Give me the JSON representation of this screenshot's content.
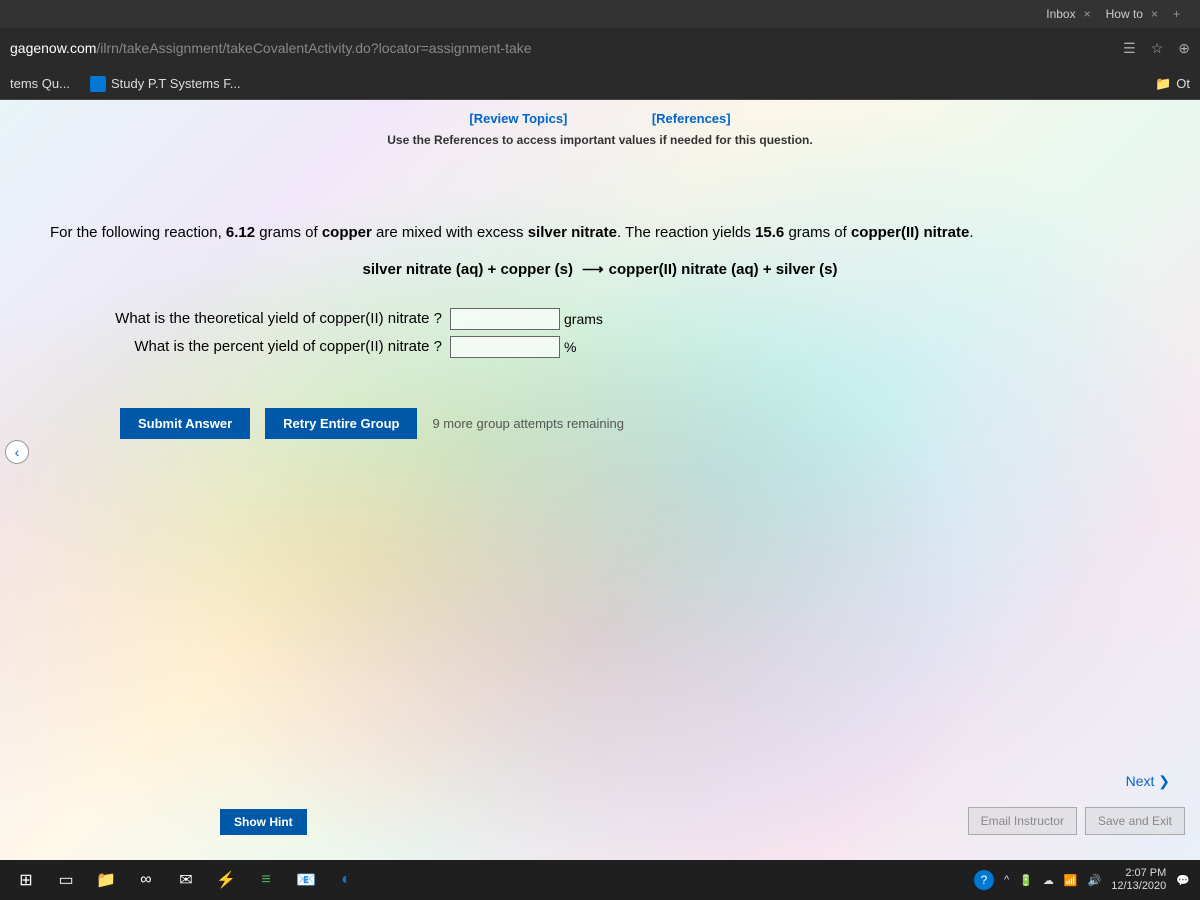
{
  "browser": {
    "tab_inbox": "Inbox",
    "tab_howto": "How to",
    "url_domain": "gagenow.com",
    "url_path": "/ilrn/takeAssignment/takeCovalentActivity.do?locator=assignment-take",
    "bookmarks": {
      "items_qu": "tems Qu...",
      "study_pt": "Study P.T Systems F..."
    },
    "folder_right": "Ot"
  },
  "links": {
    "review": "[Review Topics]",
    "references": "[References]"
  },
  "instruction": "Use the References to access important values if needed for this question.",
  "problem": {
    "intro_a": "For the following reaction, ",
    "mass1": "6.12",
    "intro_b": " grams of ",
    "reagent1": "copper",
    "intro_c": " are mixed with excess ",
    "reagent2": "silver nitrate",
    "intro_d": ". The reaction yields ",
    "mass2": "15.6",
    "intro_e": " grams of ",
    "product": "copper(II) nitrate",
    "period": "."
  },
  "equation": {
    "lhs": "silver nitrate (aq) + copper (s)",
    "rhs": "copper(II) nitrate (aq) + silver (s)"
  },
  "q1": {
    "label": "What is the theoretical yield of copper(II) nitrate ?",
    "unit": "grams"
  },
  "q2": {
    "label": "What is the percent yield of copper(II) nitrate ?",
    "unit": "%"
  },
  "buttons": {
    "submit": "Submit Answer",
    "retry": "Retry Entire Group",
    "attempts": "9 more group attempts remaining",
    "show_hint": "Show Hint",
    "next": "Next",
    "email": "Email Instructor",
    "save_exit": "Save and Exit"
  },
  "taskbar": {
    "time": "2:07 PM",
    "date": "12/13/2020"
  }
}
